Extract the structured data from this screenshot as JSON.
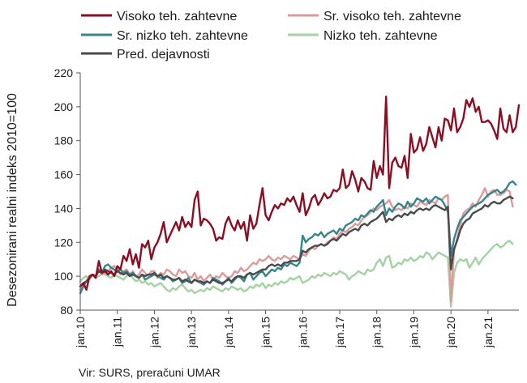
{
  "chart_data": {
    "type": "line",
    "ylabel": "Desezonirani realni indeks 2010=100",
    "source": "Vir: SURS, preračuni UMAR",
    "ylim": [
      80,
      220
    ],
    "yticks": [
      80,
      100,
      120,
      140,
      160,
      180,
      200,
      220
    ],
    "xticks": [
      {
        "label": "jan.10",
        "t": 0
      },
      {
        "label": "jan.11",
        "t": 12
      },
      {
        "label": "jan.12",
        "t": 24
      },
      {
        "label": "jan.13",
        "t": 36
      },
      {
        "label": "jan.14",
        "t": 48
      },
      {
        "label": "jan.15",
        "t": 60
      },
      {
        "label": "jan.16",
        "t": 72
      },
      {
        "label": "jan.17",
        "t": 84
      },
      {
        "label": "jan.18",
        "t": 96
      },
      {
        "label": "jan.19",
        "t": 108
      },
      {
        "label": "jan.20",
        "t": 120
      },
      {
        "label": "jan.21",
        "t": 132
      }
    ],
    "x_start": "jan.10",
    "x_step": "month",
    "grid": false,
    "legend_placement": "top",
    "series": [
      {
        "name": "Visoko teh. zahtevne",
        "color": "#8b0e23",
        "values": [
          94,
          96,
          92,
          100,
          101,
          99,
          109,
          102,
          103,
          101,
          103,
          100,
          106,
          104,
          112,
          109,
          116,
          107,
          113,
          105,
          119,
          117,
          121,
          110,
          117,
          120,
          125,
          132,
          120,
          124,
          128,
          132,
          127,
          135,
          129,
          132,
          129,
          145,
          150,
          130,
          134,
          133,
          131,
          128,
          121,
          123,
          122,
          131,
          135,
          130,
          127,
          133,
          128,
          132,
          121,
          136,
          128,
          131,
          142,
          152,
          136,
          133,
          138,
          142,
          140,
          143,
          142,
          146,
          144,
          147,
          142,
          138,
          149,
          136,
          140,
          146,
          148,
          142,
          145,
          149,
          146,
          147,
          151,
          150,
          152,
          163,
          152,
          154,
          162,
          157,
          150,
          158,
          156,
          152,
          151,
          168,
          158,
          165,
          160,
          206,
          152,
          167,
          170,
          165,
          164,
          171,
          158,
          184,
          173,
          175,
          182,
          174,
          178,
          188,
          182,
          176,
          188,
          180,
          193,
          192,
          186,
          199,
          185,
          188,
          193,
          204,
          200,
          205,
          197,
          200,
          191,
          191,
          192,
          190,
          186,
          181,
          199,
          187,
          185,
          195,
          185,
          188,
          201
        ]
      },
      {
        "name": "Sr. visoko teh. zahtevne",
        "color": "#dd9a9a",
        "values": [
          92,
          95,
          97,
          100,
          101,
          99,
          104,
          101,
          102,
          103,
          105,
          106,
          104,
          101,
          103,
          104,
          101,
          103,
          100,
          101,
          104,
          102,
          100,
          103,
          103,
          99,
          102,
          101,
          104,
          103,
          101,
          100,
          104,
          102,
          103,
          100,
          99,
          102,
          98,
          100,
          97,
          99,
          101,
          98,
          100,
          99,
          102,
          100,
          99,
          100,
          103,
          102,
          105,
          103,
          104,
          106,
          108,
          107,
          110,
          109,
          110,
          112,
          110,
          109,
          111,
          110,
          112,
          111,
          110,
          112,
          111,
          110,
          113,
          112,
          115,
          117,
          116,
          118,
          119,
          118,
          120,
          121,
          123,
          122,
          125,
          127,
          126,
          128,
          129,
          131,
          130,
          133,
          135,
          136,
          138,
          140,
          139,
          141,
          142,
          143,
          145,
          141,
          139,
          140,
          139,
          141,
          140,
          143,
          142,
          141,
          144,
          143,
          142,
          145,
          144,
          143,
          146,
          145,
          147,
          148,
          85,
          115,
          122,
          130,
          137,
          139,
          140,
          143,
          141,
          145,
          148,
          152,
          147,
          150,
          151,
          148,
          148,
          149,
          151,
          150,
          141
        ]
      },
      {
        "name": "Sr. nizko teh. zahtevne",
        "color": "#36858c",
        "values": [
          90,
          94,
          97,
          99,
          101,
          100,
          104,
          102,
          106,
          107,
          105,
          104,
          103,
          104,
          102,
          103,
          101,
          102,
          100,
          99,
          101,
          98,
          99,
          100,
          101,
          100,
          99,
          98,
          100,
          99,
          97,
          98,
          99,
          96,
          97,
          99,
          96,
          98,
          97,
          96,
          95,
          97,
          96,
          99,
          98,
          97,
          95,
          97,
          99,
          96,
          98,
          100,
          99,
          97,
          101,
          102,
          98,
          100,
          102,
          103,
          100,
          102,
          104,
          103,
          105,
          104,
          107,
          106,
          108,
          107,
          106,
          108,
          124,
          120,
          122,
          123,
          125,
          124,
          126,
          123,
          125,
          126,
          127,
          125,
          128,
          127,
          130,
          131,
          132,
          134,
          133,
          136,
          135,
          137,
          139,
          138,
          141,
          143,
          145,
          136,
          140,
          138,
          141,
          143,
          142,
          140,
          144,
          141,
          143,
          146,
          145,
          144,
          146,
          143,
          145,
          147,
          146,
          145,
          142,
          138,
          112,
          122,
          128,
          133,
          135,
          137,
          139,
          141,
          142,
          143,
          144,
          146,
          148,
          149,
          150,
          151,
          149,
          150,
          152,
          155,
          156,
          154
        ]
      },
      {
        "name": "Nizko teh. zahtevne",
        "color": "#a3d2a3",
        "values": [
          97,
          99,
          100,
          98,
          101,
          99,
          100,
          102,
          101,
          100,
          99,
          101,
          100,
          99,
          98,
          100,
          101,
          99,
          97,
          98,
          96,
          97,
          95,
          96,
          94,
          95,
          96,
          94,
          92,
          91,
          93,
          92,
          94,
          95,
          93,
          91,
          92,
          90,
          91,
          92,
          91,
          93,
          92,
          94,
          93,
          92,
          91,
          93,
          92,
          94,
          93,
          92,
          93,
          91,
          92,
          94,
          93,
          95,
          94,
          96,
          93,
          95,
          94,
          96,
          95,
          97,
          96,
          97,
          99,
          98,
          99,
          100,
          96,
          97,
          98,
          100,
          99,
          101,
          100,
          102,
          101,
          100,
          102,
          101,
          103,
          102,
          101,
          98,
          100,
          101,
          103,
          102,
          101,
          104,
          103,
          104,
          108,
          110,
          106,
          111,
          112,
          105,
          106,
          108,
          107,
          110,
          109,
          111,
          109,
          110,
          112,
          111,
          114,
          113,
          110,
          112,
          114,
          113,
          112,
          111,
          82,
          102,
          108,
          110,
          109,
          110,
          105,
          108,
          111,
          107,
          110,
          112,
          114,
          116,
          118,
          119,
          117,
          118,
          120,
          121,
          119
        ]
      },
      {
        "name": "Pred. dejavnosti",
        "color": "#4a4a4a",
        "values": [
          94,
          96,
          97,
          99,
          101,
          100,
          103,
          102,
          104,
          103,
          102,
          101,
          103,
          102,
          101,
          102,
          100,
          101,
          100,
          99,
          101,
          100,
          101,
          101,
          102,
          100,
          101,
          99,
          100,
          99,
          98,
          98,
          99,
          97,
          98,
          97,
          96,
          98,
          97,
          97,
          96,
          97,
          96,
          98,
          97,
          96,
          96,
          97,
          98,
          97,
          99,
          100,
          100,
          99,
          101,
          102,
          101,
          102,
          103,
          104,
          104,
          106,
          107,
          106,
          107,
          106,
          108,
          108,
          109,
          109,
          109,
          110,
          115,
          114,
          116,
          117,
          118,
          118,
          119,
          118,
          119,
          121,
          122,
          121,
          123,
          125,
          124,
          126,
          127,
          128,
          127,
          130,
          131,
          130,
          132,
          133,
          134,
          136,
          138,
          132,
          134,
          133,
          135,
          136,
          135,
          137,
          136,
          138,
          137,
          139,
          140,
          139,
          140,
          139,
          141,
          142,
          141,
          140,
          139,
          141,
          104,
          116,
          121,
          127,
          131,
          133,
          134,
          137,
          138,
          139,
          140,
          142,
          141,
          143,
          144,
          143,
          143,
          145,
          146,
          147,
          146
        ]
      }
    ]
  }
}
